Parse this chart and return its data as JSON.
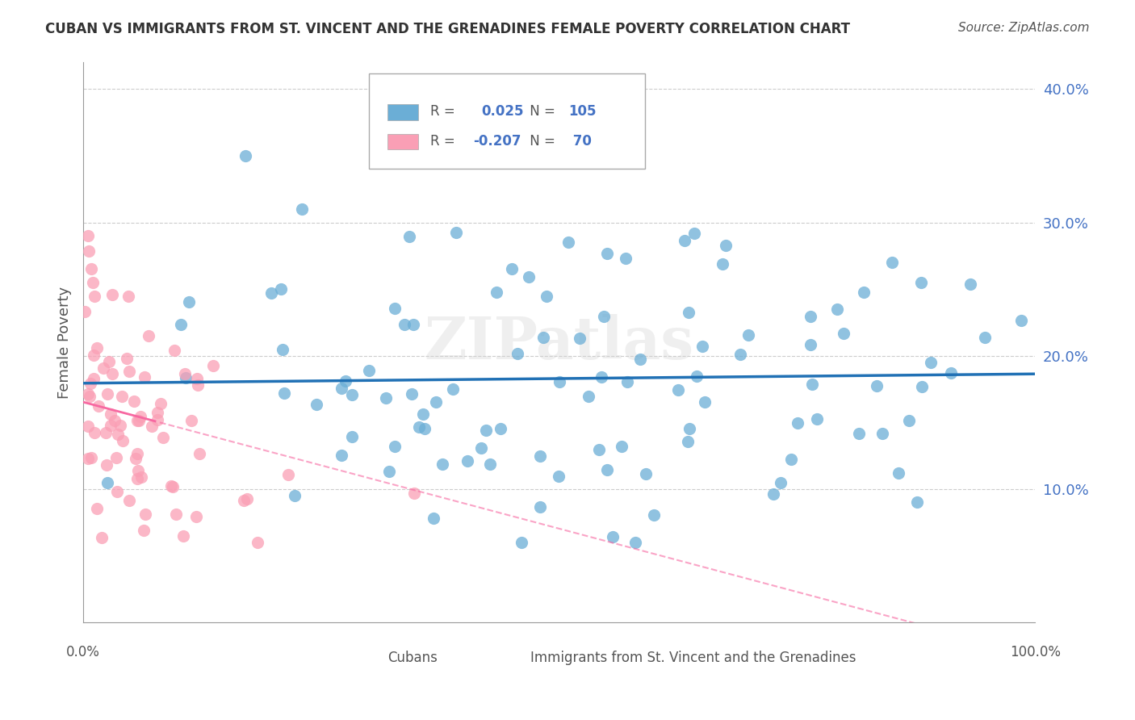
{
  "title": "CUBAN VS IMMIGRANTS FROM ST. VINCENT AND THE GRENADINES FEMALE POVERTY CORRELATION CHART",
  "source": "Source: ZipAtlas.com",
  "ylabel": "Female Poverty",
  "xlim": [
    0.0,
    1.0
  ],
  "ylim": [
    0.0,
    0.42
  ],
  "blue_color": "#6baed6",
  "pink_color": "#fa9fb5",
  "blue_line_color": "#2171b5",
  "pink_line_color": "#f768a1",
  "label_cubans": "Cubans",
  "label_immigrants": "Immigrants from St. Vincent and the Grenadines",
  "watermark": "ZIPatlas",
  "blue_r": 0.025,
  "blue_n": 105,
  "pink_r": -0.207,
  "pink_n": 70
}
